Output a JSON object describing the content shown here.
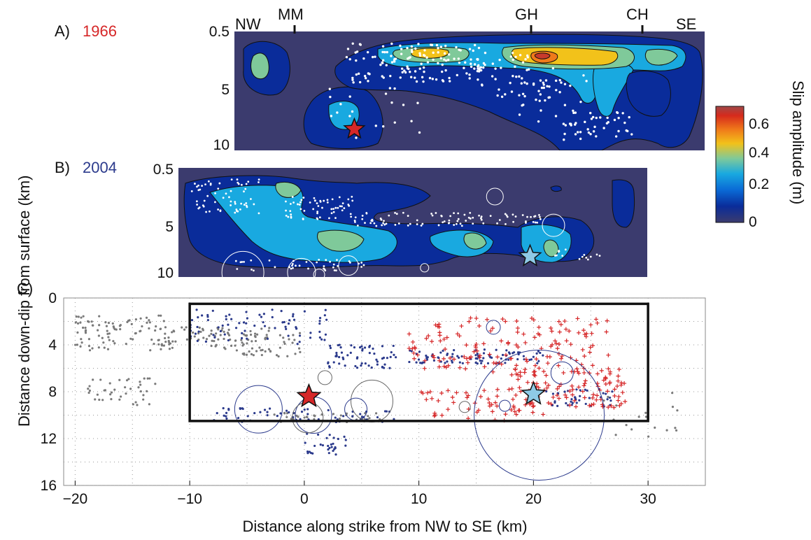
{
  "panelA": {
    "label": "A)",
    "year": "1966",
    "year_color": "#d62728"
  },
  "panelB": {
    "label": "B)",
    "year": "2004",
    "year_color": "#2b3a8c"
  },
  "panelC": {
    "label": "C)"
  },
  "top_labels": [
    "NW",
    "MM",
    "GH",
    "CH",
    "SE"
  ],
  "ylabel": "Distance down-dip from surface (km)",
  "xlabel": "Distance along strike from NW to SE (km)",
  "colorbar": {
    "label": "Slip amplitude (m)",
    "ticks": [
      "0.6",
      "0.4",
      "0.2",
      "0"
    ],
    "stops": [
      "#3b3b6e",
      "#0a2c9a",
      "#0a6ad6",
      "#19a9e0",
      "#7fc99a",
      "#f2c21a",
      "#f07a1a",
      "#d62a1c",
      "#a04848"
    ]
  },
  "chart_data": [
    {
      "type": "heatmap",
      "panel": "A",
      "title": "1966",
      "xlim": [
        -10,
        30
      ],
      "ylim": [
        0.5,
        10
      ],
      "y_ticks": [
        "0.5",
        "5",
        "10"
      ],
      "clim": [
        0,
        0.6
      ],
      "peak_slip": 0.55,
      "hypocenter": {
        "x": 0.2,
        "y": 8.3,
        "color": "#d62728"
      }
    },
    {
      "type": "heatmap",
      "panel": "B",
      "title": "2004",
      "xlim": [
        -10,
        30
      ],
      "ylim": [
        0.5,
        10
      ],
      "y_ticks": [
        "0.5",
        "5",
        "10"
      ],
      "clim": [
        0,
        0.6
      ],
      "hypocenter": {
        "x": 20,
        "y": 8.2,
        "color": "#8ecae6"
      }
    },
    {
      "type": "scatter",
      "panel": "C",
      "xlim": [
        -21,
        35
      ],
      "ylim": [
        0,
        16
      ],
      "x_ticks": [
        -20,
        -10,
        0,
        10,
        20,
        30
      ],
      "x_tick_labels": [
        "−20",
        "−10",
        "0",
        "10",
        "20",
        "30"
      ],
      "y_ticks": [
        0,
        4,
        8,
        12,
        16
      ],
      "y_tick_labels": [
        "0",
        "4",
        "8",
        "12",
        "16"
      ],
      "fault_box": {
        "x": [
          -10,
          30
        ],
        "y": [
          0.5,
          10.5
        ]
      },
      "stars": [
        {
          "x": 0.4,
          "y": 8.4,
          "color": "#d62728"
        },
        {
          "x": 20,
          "y": 8.2,
          "color": "#8ecae6"
        }
      ],
      "grid": "dotted"
    }
  ]
}
